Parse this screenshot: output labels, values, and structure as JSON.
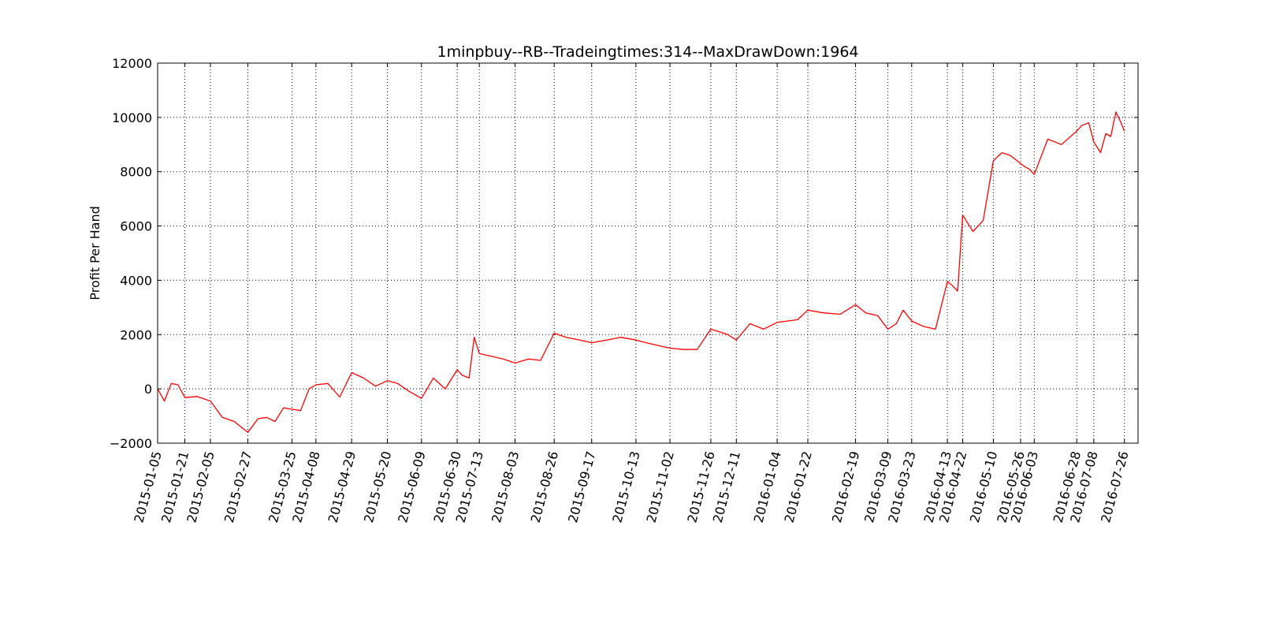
{
  "chart_data": {
    "type": "line",
    "title": "1minpbuy--RB--Tradeingtimes:314--MaxDrawDown:1964",
    "xlabel": "",
    "ylabel": "Profit Per Hand",
    "ylim": [
      -2000,
      12000
    ],
    "xlim": [
      "2015-01-05",
      "2016-08-03"
    ],
    "y_ticks": [
      -2000,
      0,
      2000,
      4000,
      6000,
      8000,
      10000,
      12000
    ],
    "y_tick_labels": [
      "−2000",
      "0",
      "2000",
      "4000",
      "6000",
      "8000",
      "10000",
      "12000"
    ],
    "x_ticks": [
      "2015-01-05",
      "2015-01-21",
      "2015-02-05",
      "2015-02-27",
      "2015-03-25",
      "2015-04-08",
      "2015-04-29",
      "2015-05-20",
      "2015-06-09",
      "2015-06-30",
      "2015-07-13",
      "2015-08-03",
      "2015-08-26",
      "2015-09-17",
      "2015-10-13",
      "2015-11-02",
      "2015-11-26",
      "2015-12-11",
      "2016-01-04",
      "2016-01-22",
      "2016-02-19",
      "2016-03-09",
      "2016-03-23",
      "2016-04-13",
      "2016-04-22",
      "2016-05-10",
      "2016-05-26",
      "2016-06-03",
      "2016-06-28",
      "2016-07-08",
      "2016-07-26"
    ],
    "grid": true,
    "line_color": "#ff0000",
    "series": [
      {
        "name": "",
        "x": [
          "2015-01-05",
          "2015-01-09",
          "2015-01-13",
          "2015-01-17",
          "2015-01-21",
          "2015-01-28",
          "2015-02-05",
          "2015-02-12",
          "2015-02-19",
          "2015-02-27",
          "2015-03-05",
          "2015-03-10",
          "2015-03-15",
          "2015-03-20",
          "2015-03-25",
          "2015-03-30",
          "2015-04-04",
          "2015-04-08",
          "2015-04-15",
          "2015-04-22",
          "2015-04-29",
          "2015-05-06",
          "2015-05-13",
          "2015-05-20",
          "2015-05-26",
          "2015-06-02",
          "2015-06-09",
          "2015-06-16",
          "2015-06-23",
          "2015-06-30",
          "2015-07-03",
          "2015-07-07",
          "2015-07-10",
          "2015-07-13",
          "2015-07-20",
          "2015-07-27",
          "2015-08-03",
          "2015-08-11",
          "2015-08-18",
          "2015-08-26",
          "2015-09-02",
          "2015-09-10",
          "2015-09-17",
          "2015-09-26",
          "2015-10-04",
          "2015-10-13",
          "2015-10-19",
          "2015-10-26",
          "2015-11-02",
          "2015-11-10",
          "2015-11-18",
          "2015-11-26",
          "2015-11-31",
          "2015-12-06",
          "2015-12-11",
          "2015-12-19",
          "2015-12-27",
          "2016-01-04",
          "2016-01-10",
          "2016-01-16",
          "2016-01-22",
          "2016-01-31",
          "2016-02-10",
          "2016-02-19",
          "2016-02-25",
          "2016-03-03",
          "2016-03-09",
          "2016-03-14",
          "2016-03-18",
          "2016-03-23",
          "2016-03-30",
          "2016-04-06",
          "2016-04-13",
          "2016-04-16",
          "2016-04-19",
          "2016-04-22",
          "2016-04-28",
          "2016-05-04",
          "2016-05-10",
          "2016-05-15",
          "2016-05-20",
          "2016-05-26",
          "2016-05-28",
          "2016-05-31",
          "2016-06-03",
          "2016-06-11",
          "2016-06-19",
          "2016-06-28",
          "2016-07-01",
          "2016-07-05",
          "2016-07-08",
          "2016-07-12",
          "2016-07-15",
          "2016-07-18",
          "2016-07-21",
          "2016-07-24",
          "2016-07-26"
        ],
        "y": [
          0,
          -450,
          200,
          150,
          -320,
          -280,
          -450,
          -1050,
          -1200,
          -1600,
          -1100,
          -1050,
          -1200,
          -700,
          -750,
          -800,
          0,
          150,
          200,
          -300,
          600,
          400,
          100,
          300,
          200,
          -100,
          -350,
          400,
          0,
          700,
          500,
          400,
          1900,
          1300,
          1200,
          1100,
          950,
          1100,
          1050,
          2050,
          1900,
          1800,
          1700,
          1800,
          1900,
          1800,
          1700,
          1600,
          1500,
          1450,
          1450,
          2200,
          2100,
          2000,
          1800,
          2400,
          2200,
          2450,
          2500,
          2550,
          2900,
          2800,
          2750,
          3100,
          2800,
          2700,
          2200,
          2400,
          2900,
          2500,
          2300,
          2200,
          3950,
          3800,
          3600,
          6400,
          5800,
          6200,
          8400,
          8700,
          8600,
          8300,
          8200,
          8100,
          7900,
          9200,
          9000,
          9500,
          9700,
          9800,
          9100,
          8700,
          9400,
          9300,
          10200,
          9800,
          9500
        ]
      }
    ]
  }
}
